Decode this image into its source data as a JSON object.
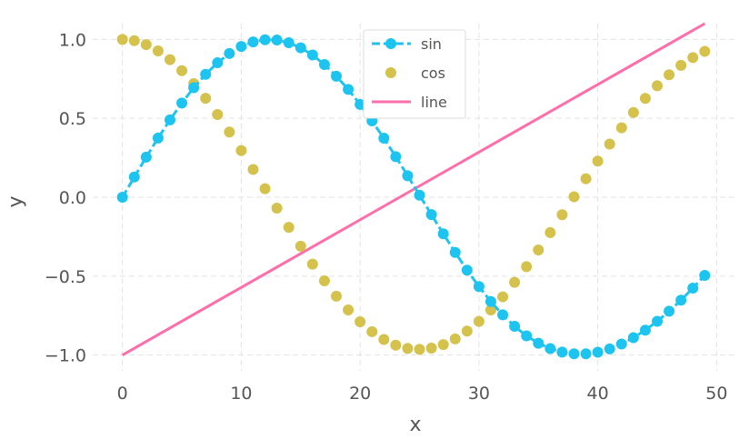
{
  "chart_data": {
    "type": "line",
    "title": "",
    "xlabel": "x",
    "ylabel": "y",
    "xlim": [
      -2.5,
      51.5
    ],
    "ylim": [
      -1.1,
      1.1
    ],
    "grid": true,
    "legend_position": "top-center",
    "x_ticks": [
      0,
      10,
      20,
      30,
      40,
      50
    ],
    "x_tick_labels": [
      "0",
      "10",
      "20",
      "30",
      "40",
      "50"
    ],
    "y_ticks": [
      -1.0,
      -0.5,
      0.0,
      0.5,
      1.0
    ],
    "y_tick_labels": [
      "−1.0",
      "−0.5",
      "0.0",
      "0.5",
      "1.0"
    ],
    "x": [
      0,
      1,
      2,
      3,
      4,
      5,
      6,
      7,
      8,
      9,
      10,
      11,
      12,
      13,
      14,
      15,
      16,
      17,
      18,
      19,
      20,
      21,
      22,
      23,
      24,
      25,
      26,
      27,
      28,
      29,
      30,
      31,
      32,
      33,
      34,
      35,
      36,
      37,
      38,
      39,
      40,
      41,
      42,
      43,
      44,
      45,
      46,
      47,
      48,
      49
    ],
    "series": [
      {
        "name": "sin",
        "style": "dashed-line-markers",
        "color": "#1ec4f0",
        "values": [
          0.0,
          0.128,
          0.254,
          0.375,
          0.49,
          0.597,
          0.694,
          0.779,
          0.852,
          0.911,
          0.955,
          0.984,
          0.998,
          0.996,
          0.979,
          0.947,
          0.901,
          0.841,
          0.767,
          0.683,
          0.588,
          0.484,
          0.374,
          0.257,
          0.136,
          0.013,
          -0.11,
          -0.232,
          -0.35,
          -0.462,
          -0.566,
          -0.661,
          -0.745,
          -0.818,
          -0.878,
          -0.925,
          -0.959,
          -0.981,
          -0.992,
          -0.992,
          -0.982,
          -0.961,
          -0.93,
          -0.89,
          -0.842,
          -0.786,
          -0.722,
          -0.652,
          -0.576,
          -0.495
        ]
      },
      {
        "name": "cos",
        "style": "markers",
        "color": "#d4c24c",
        "values": [
          1.0,
          0.992,
          0.967,
          0.927,
          0.872,
          0.802,
          0.72,
          0.627,
          0.524,
          0.413,
          0.296,
          0.176,
          0.054,
          -0.069,
          -0.191,
          -0.31,
          -0.424,
          -0.53,
          -0.627,
          -0.714,
          -0.789,
          -0.852,
          -0.901,
          -0.937,
          -0.958,
          -0.964,
          -0.956,
          -0.934,
          -0.898,
          -0.848,
          -0.787,
          -0.714,
          -0.631,
          -0.539,
          -0.44,
          -0.334,
          -0.224,
          -0.111,
          0.003,
          0.117,
          0.229,
          0.337,
          0.44,
          0.537,
          0.626,
          0.706,
          0.776,
          0.836,
          0.885,
          0.924
        ]
      },
      {
        "name": "line",
        "style": "line",
        "color": "#ff6eaa",
        "x": [
          0,
          49
        ],
        "values": [
          -1.0,
          1.1
        ]
      }
    ]
  }
}
